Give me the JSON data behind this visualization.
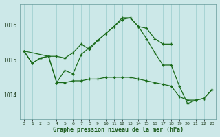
{
  "title": "Graphe pression niveau de la mer (hPa)",
  "background_color": "#cce8e8",
  "grid_color": "#99cccc",
  "line_color": "#1a6b1a",
  "xlim": [
    -0.5,
    23.5
  ],
  "ylim": [
    1013.3,
    1016.6
  ],
  "yticks": [
    1014,
    1015,
    1016
  ],
  "ytick_labels": [
    "1014",
    "1015",
    "1016"
  ],
  "xticks": [
    0,
    1,
    2,
    3,
    4,
    5,
    6,
    7,
    8,
    9,
    10,
    11,
    12,
    13,
    14,
    15,
    16,
    17,
    18,
    19,
    20,
    21,
    22,
    23
  ],
  "line1_x": [
    0,
    1,
    2,
    3,
    4,
    5,
    6,
    7,
    8,
    9,
    10,
    11,
    12,
    13,
    14,
    15,
    16,
    17,
    18
  ],
  "line1_y": [
    1015.25,
    1014.9,
    1015.05,
    1015.1,
    1015.1,
    1015.05,
    1015.2,
    1015.45,
    1015.3,
    1015.55,
    1015.75,
    1015.95,
    1016.15,
    1016.2,
    1015.95,
    1015.9,
    1015.6,
    1015.45,
    1015.45
  ],
  "line2_x": [
    0,
    1,
    2,
    3,
    4,
    5,
    6,
    7,
    8,
    9,
    10,
    11,
    12,
    13,
    14,
    15,
    16,
    17,
    18,
    19,
    20,
    21,
    22,
    23
  ],
  "line2_y": [
    1015.25,
    1014.9,
    1015.05,
    1015.1,
    1014.35,
    1014.35,
    1014.4,
    1014.4,
    1014.45,
    1014.45,
    1014.5,
    1014.5,
    1014.5,
    1014.5,
    1014.45,
    1014.4,
    1014.35,
    1014.3,
    1014.25,
    1013.95,
    1013.85,
    1013.85,
    1013.9,
    1014.15
  ],
  "line3_x": [
    0,
    3,
    4,
    5,
    6,
    7,
    8,
    9,
    10,
    11,
    12,
    13,
    14,
    15,
    16,
    17,
    18,
    19,
    20,
    21,
    22,
    23
  ],
  "line3_y": [
    1015.25,
    1015.1,
    1014.35,
    1014.7,
    1014.6,
    1015.15,
    1015.35,
    1015.55,
    1015.75,
    1015.95,
    1016.2,
    1016.2,
    1015.95,
    1015.6,
    1015.2,
    1014.85,
    1014.85,
    1014.25,
    1013.75,
    1013.85,
    1013.9,
    1014.15
  ]
}
